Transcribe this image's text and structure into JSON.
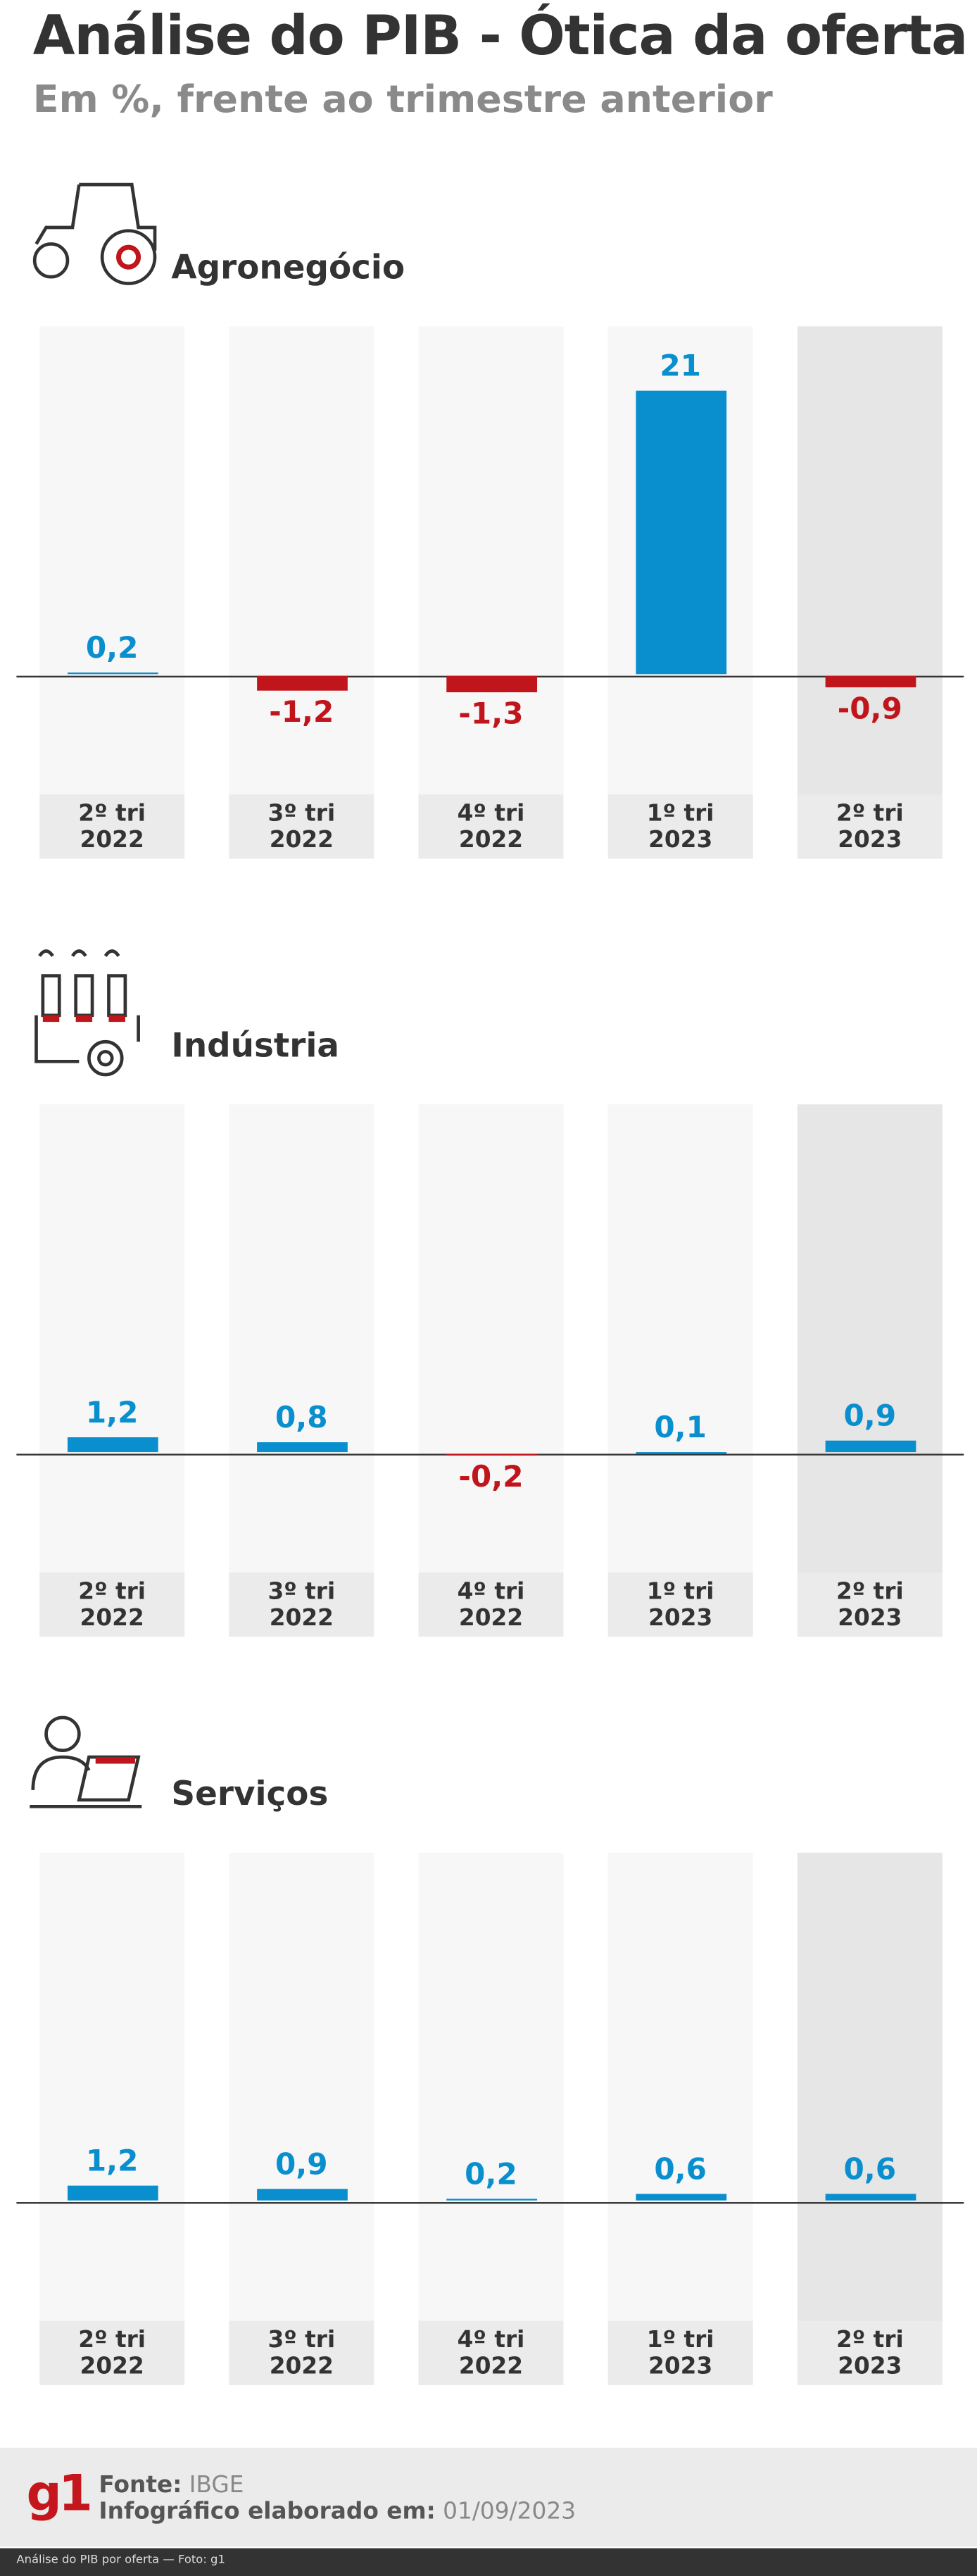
{
  "header": {
    "title": "Análise do PIB - Ótica da oferta",
    "subtitle": "Em %, frente ao trimestre anterior"
  },
  "chart_data": [
    {
      "type": "bar",
      "title": "Agronegócio",
      "categories": [
        "2º tri 2022",
        "3º tri 2022",
        "4º tri 2022",
        "1º tri 2023",
        "2º tri 2023"
      ],
      "values": [
        0.2,
        -1.2,
        -1.3,
        21,
        -0.9
      ],
      "value_labels": [
        "0,2",
        "-1,2",
        "-1,3",
        "21",
        "-0,9"
      ],
      "color": "#0a8fce",
      "negative_color": "#c0151b",
      "ylim": [
        -8.6,
        25.8
      ]
    },
    {
      "type": "bar",
      "title": "Indústria",
      "categories": [
        "2º tri 2022",
        "3º tri 2022",
        "4º tri 2022",
        "1º tri 2023",
        "2º tri 2023"
      ],
      "values": [
        1.2,
        0.8,
        -0.2,
        0.1,
        0.9
      ],
      "value_labels": [
        "1,2",
        "0,8",
        "-0,2",
        "0,1",
        "0,9"
      ],
      "color": "#0a8fce",
      "negative_color": "#c0151b",
      "ylim": [
        -8.6,
        25.8
      ]
    },
    {
      "type": "bar",
      "title": "Serviços",
      "categories": [
        "2º tri 2022",
        "3º tri 2022",
        "4º tri 2022",
        "1º tri 2023",
        "2º tri 2023"
      ],
      "values": [
        1.2,
        0.9,
        0.2,
        0.6,
        0.6
      ],
      "value_labels": [
        "1,2",
        "0,9",
        "0,2",
        "0,6",
        "0,6"
      ],
      "color": "#0a8fce",
      "negative_color": "#c0151b",
      "ylim": [
        -8.6,
        25.8
      ]
    }
  ],
  "footer": {
    "logo": "g1",
    "source_label": "Fonte:",
    "source": "IBGE",
    "date_label": "Infográfico elaborado em:",
    "date": "01/09/2023",
    "caption": "Análise do PIB por oferta — Foto: g1"
  }
}
